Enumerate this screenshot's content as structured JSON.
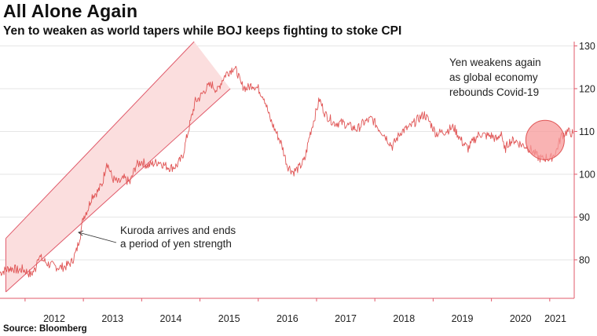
{
  "header": {
    "title": "All Alone Again",
    "subtitle": "Yen to weaken as world tapers while BOJ keeps fighting to stoke CPI"
  },
  "footer": {
    "source": "Source: Bloomberg"
  },
  "colors": {
    "line": "#e05555",
    "channel_fill": "#fbdede",
    "channel_stroke": "#e05a6a",
    "circle_fill": "#f79a9a",
    "circle_stroke": "#e05555",
    "grid": "#e6e6e6",
    "axis": "#e05a6a"
  },
  "chart_data": {
    "type": "line",
    "title": "All Alone Again",
    "subtitle": "Yen to weaken as world tapers while BOJ keeps fighting to stoke CPI",
    "xlabel": "",
    "ylabel": "",
    "y_axis_side": "right",
    "xlim": [
      2011.57,
      2021.42
    ],
    "ylim": [
      71,
      131
    ],
    "x_ticks": [
      "2012",
      "2013",
      "2014",
      "2015",
      "2016",
      "2017",
      "2018",
      "2019",
      "2020",
      "2021"
    ],
    "y_ticks": [
      80,
      90,
      100,
      110,
      120,
      130
    ],
    "grid": true,
    "series": [
      {
        "x": [
          2011.57,
          2011.65,
          2011.72,
          2011.8,
          2011.88,
          2011.95,
          2012.0,
          2012.1,
          2012.18,
          2012.22,
          2012.3,
          2012.4,
          2012.5,
          2012.6,
          2012.7,
          2012.8,
          2012.88,
          2012.95,
          2013.0,
          2013.08,
          2013.15,
          2013.25,
          2013.33,
          2013.4,
          2013.5,
          2013.6,
          2013.7,
          2013.8,
          2013.9,
          2014.0,
          2014.1,
          2014.2,
          2014.3,
          2014.4,
          2014.5,
          2014.6,
          2014.7,
          2014.78,
          2014.85,
          2014.92,
          2015.0,
          2015.1,
          2015.2,
          2015.3,
          2015.38,
          2015.45,
          2015.5,
          2015.58,
          2015.65,
          2015.7,
          2015.8,
          2015.9,
          2016.0,
          2016.1,
          2016.2,
          2016.3,
          2016.4,
          2016.5,
          2016.6,
          2016.7,
          2016.8,
          2016.88,
          2016.96,
          2017.05,
          2017.15,
          2017.3,
          2017.45,
          2017.6,
          2017.7,
          2017.8,
          2017.95,
          2018.05,
          2018.15,
          2018.3,
          2018.45,
          2018.6,
          2018.75,
          2018.85,
          2018.95,
          2019.05,
          2019.2,
          2019.35,
          2019.5,
          2019.6,
          2019.7,
          2019.8,
          2019.9,
          2020.0,
          2020.1,
          2020.17,
          2020.22,
          2020.3,
          2020.4,
          2020.5,
          2020.6,
          2020.7,
          2020.8,
          2020.88,
          2020.95,
          2021.0,
          2021.1,
          2021.2,
          2021.3,
          2021.4
        ],
        "values": [
          77,
          77.5,
          78,
          78,
          77.5,
          77.8,
          77.5,
          76.5,
          78,
          81,
          80,
          79,
          78.5,
          78.2,
          78.5,
          79.5,
          82,
          86,
          90,
          92,
          95,
          96,
          98,
          103,
          99,
          98,
          99,
          98,
          102,
          103,
          102,
          102.5,
          103,
          102,
          101.5,
          102,
          104,
          109,
          113,
          117,
          118,
          120,
          121,
          119.5,
          122,
          123.5,
          124,
          125,
          123.5,
          121,
          120,
          121,
          120,
          118,
          113,
          110,
          107,
          102,
          100.5,
          101.5,
          103.5,
          109,
          113,
          117.5,
          114,
          112,
          112,
          111,
          110.5,
          112,
          113,
          111,
          109.5,
          106.5,
          110,
          111,
          113,
          114,
          112,
          109.5,
          110,
          111,
          107.5,
          106,
          108,
          109.5,
          109,
          109,
          108,
          110,
          105.5,
          107.5,
          108,
          107,
          106.5,
          105.5,
          104,
          103.5,
          104,
          103.5,
          105,
          109,
          110,
          109.5
        ]
      }
    ],
    "annotations": [
      {
        "text_lines": [
          "Kuroda arrives and ends",
          "a period of yen strength"
        ]
      },
      {
        "text_lines": [
          "Yen weakens again",
          "as global economy",
          "rebounds Covid-19"
        ]
      }
    ],
    "channel": {
      "lower_start": {
        "x": 2011.67,
        "y": 72.5
      },
      "lower_end": {
        "x": 2015.52,
        "y": 120
      },
      "upper_start": {
        "x": 2011.67,
        "y": 85
      },
      "upper_end": {
        "x": 2014.9,
        "y": 131
      }
    },
    "highlight_circle": {
      "cx": 2020.92,
      "cy": 108,
      "rx": 0.33,
      "ry": 4.6
    }
  }
}
